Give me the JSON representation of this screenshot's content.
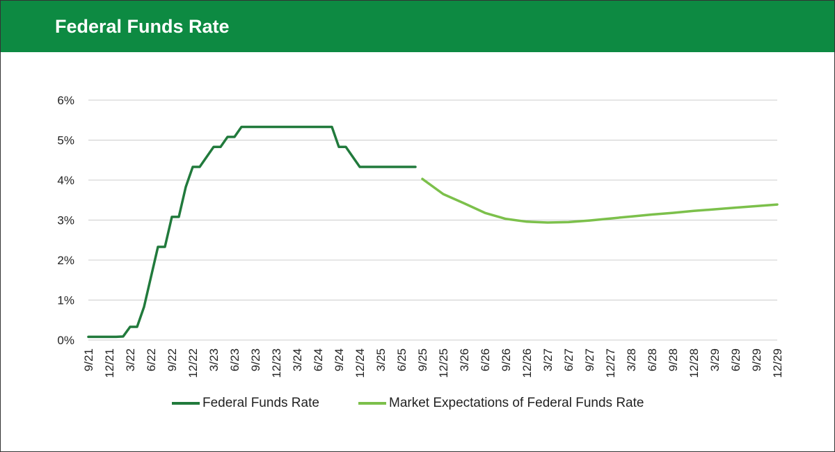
{
  "header": {
    "title": "Federal Funds Rate"
  },
  "chart_data": {
    "type": "line",
    "title": "Federal Funds Rate",
    "ylim": [
      0,
      6
    ],
    "yticks": [
      "0%",
      "1%",
      "2%",
      "3%",
      "4%",
      "5%",
      "6%"
    ],
    "xticks": [
      "9/21",
      "12/21",
      "3/22",
      "6/22",
      "9/22",
      "12/22",
      "3/23",
      "6/23",
      "9/23",
      "12/23",
      "3/24",
      "6/24",
      "9/24",
      "12/24",
      "3/25",
      "6/25",
      "9/25",
      "12/25",
      "3/26",
      "6/26",
      "9/26",
      "12/26",
      "3/27",
      "6/27",
      "9/27",
      "12/27",
      "3/28",
      "6/28",
      "9/28",
      "12/28",
      "3/29",
      "6/29",
      "9/29",
      "12/29"
    ],
    "grid": true,
    "legend": "bottom",
    "colors": {
      "header": "#0d8a42",
      "federal_funds_rate": "#217a3c",
      "market_expectations": "#7cc04b",
      "grid": "#cccccc"
    },
    "series": [
      {
        "name": "Federal Funds Rate",
        "start": "9/21",
        "frequency": "monthly",
        "values": [
          0.08,
          0.08,
          0.08,
          0.08,
          0.08,
          0.09,
          0.33,
          0.33,
          0.83,
          1.58,
          2.33,
          2.33,
          3.08,
          3.08,
          3.83,
          4.33,
          4.33,
          4.58,
          4.83,
          4.83,
          5.08,
          5.08,
          5.33,
          5.33,
          5.33,
          5.33,
          5.33,
          5.33,
          5.33,
          5.33,
          5.33,
          5.33,
          5.33,
          5.33,
          5.33,
          5.33,
          4.83,
          4.83,
          4.58,
          4.33,
          4.33,
          4.33,
          4.33,
          4.33,
          4.33,
          4.33,
          4.33,
          4.33
        ]
      },
      {
        "name": "Market Expectations of Federal Funds Rate",
        "start": "9/25",
        "frequency": "quarterly",
        "values": [
          4.03,
          3.65,
          3.42,
          3.18,
          3.03,
          2.96,
          2.94,
          2.95,
          2.99,
          3.04,
          3.09,
          3.14,
          3.18,
          3.23,
          3.27,
          3.31,
          3.35,
          3.39
        ]
      }
    ]
  }
}
